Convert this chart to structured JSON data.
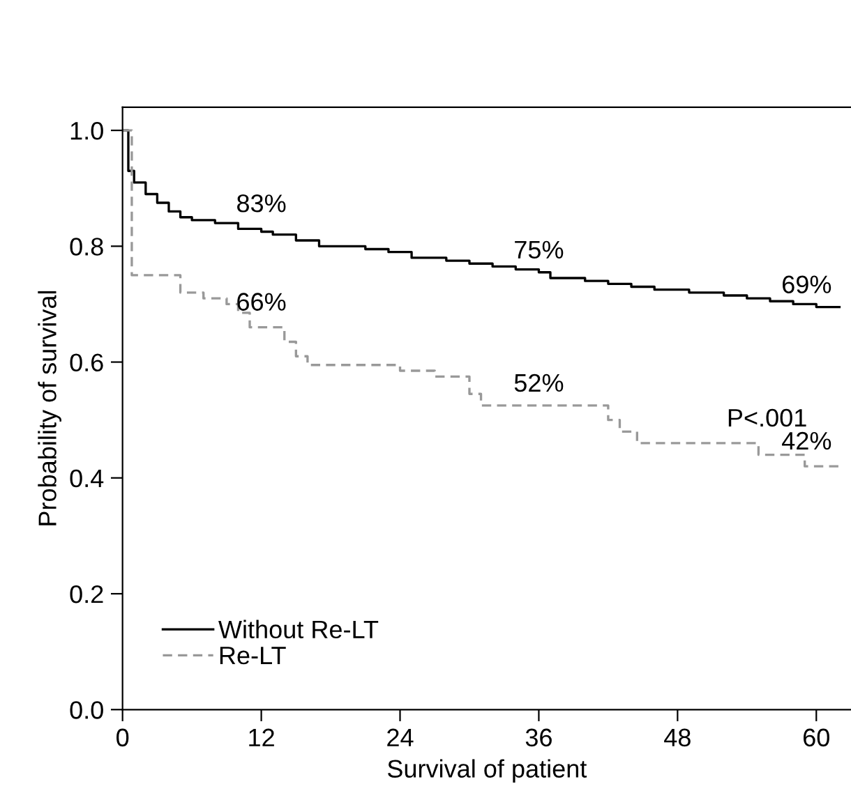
{
  "chart_data": {
    "type": "step",
    "xlabel": "Survival of patient",
    "ylabel": "Probability of survival",
    "xlim": [
      0,
      63
    ],
    "ylim": [
      0,
      1.04
    ],
    "xticks": [
      0,
      12,
      24,
      36,
      48,
      60
    ],
    "yticks": [
      {
        "value": 0,
        "label": "0.0"
      },
      0.2,
      0.4,
      0.6,
      0.8,
      {
        "value": 1,
        "label": "1.0"
      }
    ],
    "grid": false,
    "legend": "bottom left",
    "marker": "none",
    "series": [
      {
        "name": "Without Re-LT",
        "color": "#000000",
        "line_style": "solid",
        "x": [
          0,
          0.5,
          1,
          2,
          3,
          4,
          5,
          6,
          8,
          10,
          12,
          13,
          15,
          17,
          21,
          23,
          25,
          28,
          30,
          32,
          34,
          36,
          37,
          40,
          42,
          44,
          46,
          49,
          52,
          54,
          56,
          58,
          60,
          62
        ],
        "values": [
          1.0,
          0.93,
          0.91,
          0.89,
          0.875,
          0.86,
          0.85,
          0.845,
          0.84,
          0.83,
          0.825,
          0.82,
          0.81,
          0.8,
          0.795,
          0.79,
          0.78,
          0.775,
          0.77,
          0.765,
          0.76,
          0.755,
          0.745,
          0.74,
          0.735,
          0.73,
          0.725,
          0.72,
          0.715,
          0.71,
          0.705,
          0.7,
          0.695,
          0.695
        ]
      },
      {
        "name": "Re-LT",
        "color": "#999999",
        "line_style": "dashed",
        "x": [
          0,
          0.8,
          5,
          7,
          9,
          10,
          11,
          14,
          15,
          16,
          24,
          27,
          30,
          31,
          42,
          43,
          44.5,
          55,
          59,
          62
        ],
        "values": [
          1.0,
          0.75,
          0.72,
          0.71,
          0.7,
          0.685,
          0.66,
          0.635,
          0.61,
          0.595,
          0.585,
          0.575,
          0.545,
          0.525,
          0.5,
          0.48,
          0.46,
          0.44,
          0.42,
          0.42
        ]
      }
    ],
    "annotations": [
      {
        "text": "83%",
        "x": 12,
        "y": 0.83
      },
      {
        "text": "75%",
        "x": 36,
        "y": 0.75
      },
      {
        "text": "69%",
        "x": 60,
        "y": 0.69
      },
      {
        "text": "66%",
        "x": 12,
        "y": 0.66
      },
      {
        "text": "52%",
        "x": 36,
        "y": 0.52
      },
      {
        "text": "42%",
        "x": 60,
        "y": 0.42
      },
      "P<.001"
    ]
  }
}
